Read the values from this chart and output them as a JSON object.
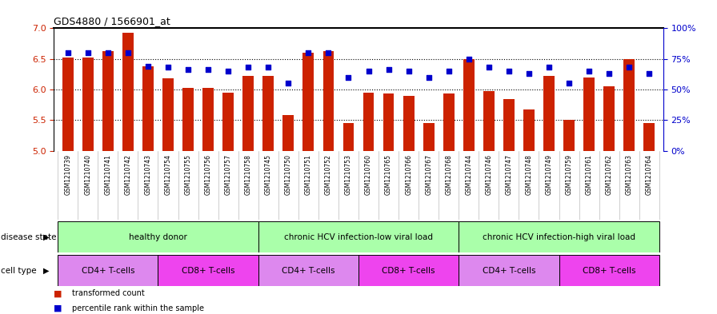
{
  "title": "GDS4880 / 1566901_at",
  "samples": [
    "GSM1210739",
    "GSM1210740",
    "GSM1210741",
    "GSM1210742",
    "GSM1210743",
    "GSM1210754",
    "GSM1210755",
    "GSM1210756",
    "GSM1210757",
    "GSM1210758",
    "GSM1210745",
    "GSM1210750",
    "GSM1210751",
    "GSM1210752",
    "GSM1210753",
    "GSM1210760",
    "GSM1210765",
    "GSM1210766",
    "GSM1210767",
    "GSM1210768",
    "GSM1210744",
    "GSM1210746",
    "GSM1210747",
    "GSM1210748",
    "GSM1210749",
    "GSM1210759",
    "GSM1210761",
    "GSM1210762",
    "GSM1210763",
    "GSM1210764"
  ],
  "bar_values": [
    6.52,
    6.52,
    6.62,
    6.93,
    6.38,
    6.18,
    6.03,
    6.03,
    5.95,
    6.22,
    6.22,
    5.58,
    6.6,
    6.62,
    5.45,
    5.95,
    5.93,
    5.9,
    5.45,
    5.93,
    6.5,
    5.98,
    5.85,
    5.68,
    6.22,
    5.5,
    6.2,
    6.05,
    6.5,
    5.45
  ],
  "percentile_values": [
    80,
    80,
    80,
    80,
    69,
    68,
    66,
    66,
    65,
    68,
    68,
    55,
    80,
    80,
    60,
    65,
    66,
    65,
    60,
    65,
    75,
    68,
    65,
    63,
    68,
    55,
    65,
    63,
    68,
    63
  ],
  "bar_color": "#cc2200",
  "dot_color": "#0000cc",
  "ylim_left": [
    5.0,
    7.0
  ],
  "ylim_right": [
    0,
    100
  ],
  "yticks_left": [
    5.0,
    5.5,
    6.0,
    6.5,
    7.0
  ],
  "yticks_right": [
    0,
    25,
    50,
    75,
    100
  ],
  "ytick_labels_right": [
    "0%",
    "25%",
    "50%",
    "75%",
    "100%"
  ],
  "dotted_lines": [
    5.5,
    6.0,
    6.5
  ],
  "ds_color": "#aaffaa",
  "cd4_color": "#dd88ee",
  "cd8_color": "#ee44ee",
  "disease_states": [
    {
      "label": "healthy donor",
      "start": 0,
      "end": 9
    },
    {
      "label": "chronic HCV infection-low viral load",
      "start": 10,
      "end": 19
    },
    {
      "label": "chronic HCV infection-high viral load",
      "start": 20,
      "end": 29
    }
  ],
  "cell_type_groups": [
    {
      "label": "CD4+ T-cells",
      "start": 0,
      "end": 4,
      "type": "cd4"
    },
    {
      "label": "CD8+ T-cells",
      "start": 5,
      "end": 9,
      "type": "cd8"
    },
    {
      "label": "CD4+ T-cells",
      "start": 10,
      "end": 14,
      "type": "cd4"
    },
    {
      "label": "CD8+ T-cells",
      "start": 15,
      "end": 19,
      "type": "cd8"
    },
    {
      "label": "CD4+ T-cells",
      "start": 20,
      "end": 24,
      "type": "cd4"
    },
    {
      "label": "CD8+ T-cells",
      "start": 25,
      "end": 29,
      "type": "cd8"
    }
  ],
  "disease_state_label": "disease state",
  "cell_type_label": "cell type",
  "legend_bar_label": "transformed count",
  "legend_dot_label": "percentile rank within the sample",
  "xtick_gray": "#cccccc",
  "bar_width": 0.55
}
